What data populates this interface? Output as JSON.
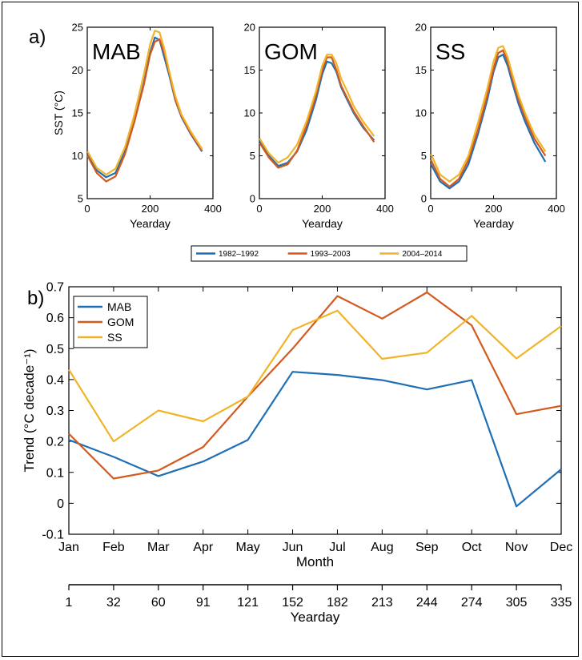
{
  "figure": {
    "label_a": "a)",
    "label_b": "b)"
  },
  "colors": {
    "blue": "#1f6fb5",
    "orange": "#d35a1f",
    "yellow": "#f0b429"
  },
  "chart_data": [
    {
      "type": "line",
      "title": "MAB",
      "xlabel": "Yearday",
      "ylabel": "SST (°C)",
      "xlim": [
        0,
        400
      ],
      "ylim": [
        5,
        25
      ],
      "xticks": [
        0,
        200,
        400
      ],
      "yticks": [
        5,
        10,
        15,
        20,
        25
      ],
      "x": [
        1,
        30,
        60,
        90,
        120,
        150,
        180,
        200,
        215,
        230,
        245,
        260,
        280,
        300,
        330,
        365
      ],
      "series": [
        {
          "name": "1982–1992",
          "values": [
            10.2,
            8.3,
            7.5,
            8.0,
            10.5,
            14.0,
            18.5,
            22.0,
            23.8,
            23.5,
            21.5,
            19.5,
            16.5,
            14.5,
            12.5,
            10.5
          ]
        },
        {
          "name": "1993–2003",
          "values": [
            10.0,
            8.0,
            7.0,
            7.6,
            10.2,
            14.0,
            18.3,
            21.8,
            23.3,
            23.6,
            22.0,
            19.8,
            16.6,
            14.6,
            12.6,
            10.6
          ]
        },
        {
          "name": "2004–2014",
          "values": [
            10.5,
            8.6,
            7.8,
            8.5,
            11.0,
            14.8,
            19.5,
            23.0,
            24.6,
            24.4,
            22.5,
            20.0,
            17.0,
            14.8,
            12.8,
            10.8
          ]
        }
      ]
    },
    {
      "type": "line",
      "title": "GOM",
      "xlabel": "Yearday",
      "ylabel": "",
      "xlim": [
        0,
        400
      ],
      "ylim": [
        0,
        20
      ],
      "xticks": [
        0,
        200,
        400
      ],
      "yticks": [
        0,
        5,
        10,
        15,
        20
      ],
      "x": [
        1,
        30,
        60,
        90,
        120,
        150,
        180,
        200,
        215,
        230,
        245,
        260,
        280,
        300,
        330,
        365
      ],
      "series": [
        {
          "name": "1982–1992",
          "values": [
            6.8,
            5.0,
            3.8,
            4.2,
            5.5,
            8.0,
            11.5,
            14.5,
            16.0,
            15.8,
            14.8,
            13.0,
            11.5,
            10.0,
            8.3,
            6.8
          ]
        },
        {
          "name": "1993–2003",
          "values": [
            6.5,
            4.8,
            3.6,
            4.0,
            5.6,
            8.5,
            12.0,
            15.0,
            16.5,
            16.5,
            15.0,
            13.2,
            11.7,
            10.2,
            8.5,
            6.6
          ]
        },
        {
          "name": "2004–2014",
          "values": [
            7.0,
            5.3,
            4.2,
            4.8,
            6.3,
            9.0,
            12.5,
            15.5,
            16.8,
            16.8,
            15.8,
            14.0,
            12.5,
            10.8,
            9.0,
            7.3
          ]
        }
      ]
    },
    {
      "type": "line",
      "title": "SS",
      "xlabel": "Yearday",
      "ylabel": "",
      "xlim": [
        0,
        400
      ],
      "ylim": [
        0,
        20
      ],
      "xticks": [
        0,
        200,
        400
      ],
      "yticks": [
        0,
        5,
        10,
        15,
        20
      ],
      "x": [
        1,
        30,
        60,
        90,
        120,
        150,
        180,
        200,
        215,
        230,
        245,
        260,
        280,
        300,
        330,
        365
      ],
      "series": [
        {
          "name": "1982–1992",
          "values": [
            4.0,
            2.0,
            1.2,
            2.0,
            4.0,
            7.5,
            11.5,
            14.8,
            16.5,
            16.8,
            15.5,
            13.5,
            11.0,
            9.0,
            6.5,
            4.3
          ]
        },
        {
          "name": "1993–2003",
          "values": [
            4.5,
            2.3,
            1.4,
            2.3,
            4.5,
            8.0,
            12.0,
            15.2,
            17.0,
            17.3,
            16.0,
            14.0,
            11.5,
            9.5,
            7.0,
            5.0
          ]
        },
        {
          "name": "2004–2014",
          "values": [
            5.2,
            2.8,
            2.0,
            2.8,
            5.0,
            8.8,
            12.8,
            16.0,
            17.6,
            17.8,
            16.5,
            14.5,
            12.0,
            10.0,
            7.5,
            5.5
          ]
        }
      ]
    },
    {
      "type": "line",
      "title": "",
      "xlabel": "Month",
      "xlabel2": "Yearday",
      "ylabel": "Trend (°C decade⁻¹)",
      "ylim": [
        -0.1,
        0.7
      ],
      "yticks": [
        -0.1,
        0,
        0.1,
        0.2,
        0.3,
        0.4,
        0.5,
        0.6,
        0.7
      ],
      "categories": [
        "Jan",
        "Feb",
        "Mar",
        "Apr",
        "May",
        "Jun",
        "Jul",
        "Aug",
        "Sep",
        "Oct",
        "Nov",
        "Dec"
      ],
      "yeardays": [
        "1",
        "32",
        "60",
        "91",
        "121",
        "152",
        "182",
        "213",
        "244",
        "274",
        "305",
        "335"
      ],
      "legend_position": "top-left",
      "grid": false,
      "series": [
        {
          "name": "MAB",
          "values": [
            0.205,
            0.15,
            0.088,
            0.135,
            0.205,
            0.425,
            0.415,
            0.398,
            0.368,
            0.398,
            -0.01,
            0.11
          ]
        },
        {
          "name": "GOM",
          "values": [
            0.225,
            0.08,
            0.106,
            0.182,
            0.345,
            0.5,
            0.67,
            0.597,
            0.682,
            0.575,
            0.288,
            0.315
          ]
        },
        {
          "name": "SS",
          "values": [
            0.432,
            0.2,
            0.3,
            0.265,
            0.345,
            0.56,
            0.623,
            0.467,
            0.487,
            0.606,
            0.468,
            0.573
          ]
        }
      ]
    }
  ]
}
